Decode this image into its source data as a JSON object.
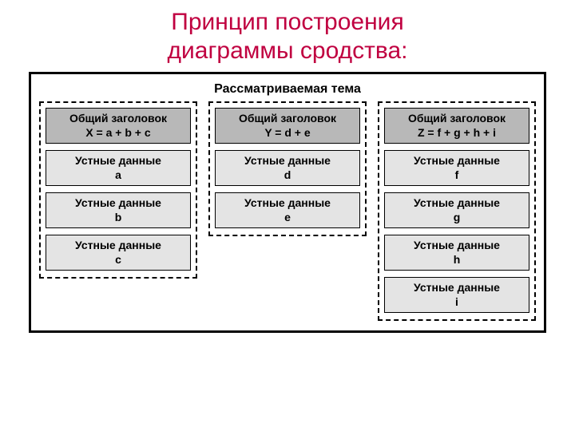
{
  "title_line1": "Принцип построения",
  "title_line2": "диаграммы сродства:",
  "title_color": "#c00040",
  "diagram": {
    "frame_border_color": "#000000",
    "frame_border_width": 3,
    "group_border_style": "dashed",
    "group_border_color": "#000000",
    "header_bg": "#b8b8b8",
    "data_bg": "#e4e4e4",
    "box_border_color": "#000000",
    "topic": "Рассматриваемая тема",
    "font_family": "Arial",
    "title_fontsize": 30,
    "topic_fontsize": 16,
    "box_fontsize": 14,
    "groups": [
      {
        "header_line1": "Общий заголовок",
        "header_line2": "X = a + b + c",
        "items": [
          {
            "line1": "Устные данные",
            "line2": "a"
          },
          {
            "line1": "Устные данные",
            "line2": "b"
          },
          {
            "line1": "Устные данные",
            "line2": "c"
          }
        ]
      },
      {
        "header_line1": "Общий заголовок",
        "header_line2": "Y = d + e",
        "items": [
          {
            "line1": "Устные данные",
            "line2": "d"
          },
          {
            "line1": "Устные данные",
            "line2": "e"
          }
        ]
      },
      {
        "header_line1": "Общий заголовок",
        "header_line2": "Z = f + g + h + i",
        "items": [
          {
            "line1": "Устные данные",
            "line2": "f"
          },
          {
            "line1": "Устные данные",
            "line2": "g"
          },
          {
            "line1": "Устные данные",
            "line2": "h"
          },
          {
            "line1": "Устные данные",
            "line2": "i"
          }
        ]
      }
    ]
  }
}
